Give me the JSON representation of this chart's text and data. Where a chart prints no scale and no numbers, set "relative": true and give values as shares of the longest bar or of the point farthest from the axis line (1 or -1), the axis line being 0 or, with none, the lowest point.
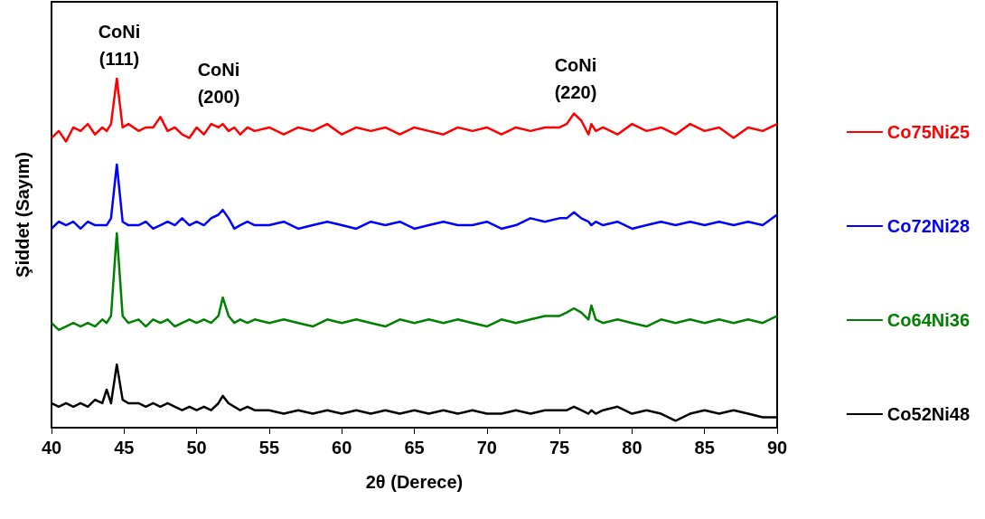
{
  "chart_data": {
    "type": "line",
    "relative": true,
    "xlabel": "2θ (Derece)",
    "ylabel": "Şiddet (Sayım)",
    "xlim": [
      40,
      90
    ],
    "xticks": [
      40,
      45,
      50,
      55,
      60,
      65,
      70,
      75,
      80,
      85,
      90
    ],
    "grid": false,
    "legend": "right",
    "line_style": "solid",
    "annotations": [
      "CoNi\n(111)",
      "CoNi\n(200)",
      "CoNi\n(220)"
    ],
    "x": [
      40,
      40.5,
      41,
      41.5,
      42,
      42.5,
      43,
      43.5,
      43.8,
      44.1,
      44.5,
      44.9,
      45.3,
      46,
      46.5,
      47,
      47.5,
      48,
      48.5,
      49,
      49.5,
      50,
      50.5,
      51,
      51.5,
      51.8,
      52.2,
      52.6,
      53,
      53.5,
      54,
      55,
      56,
      57,
      58,
      59,
      60,
      61,
      62,
      63,
      64,
      65,
      66,
      67,
      68,
      69,
      70,
      71,
      72,
      73,
      74,
      75,
      75.5,
      76,
      76.5,
      77,
      77.2,
      77.5,
      78,
      79,
      80,
      81,
      82,
      83,
      84,
      85,
      86,
      87,
      88,
      89,
      90
    ],
    "series": [
      {
        "name": "Co75Ni25",
        "color": "#ff0000",
        "values": [
          0.83,
          0.85,
          0.82,
          0.86,
          0.85,
          0.87,
          0.84,
          0.86,
          0.85,
          0.87,
          1.0,
          0.86,
          0.87,
          0.85,
          0.86,
          0.86,
          0.89,
          0.85,
          0.86,
          0.84,
          0.83,
          0.86,
          0.84,
          0.87,
          0.86,
          0.87,
          0.85,
          0.86,
          0.84,
          0.86,
          0.85,
          0.86,
          0.84,
          0.86,
          0.85,
          0.87,
          0.84,
          0.86,
          0.85,
          0.86,
          0.84,
          0.86,
          0.85,
          0.84,
          0.86,
          0.85,
          0.86,
          0.84,
          0.86,
          0.85,
          0.86,
          0.86,
          0.87,
          0.9,
          0.88,
          0.84,
          0.87,
          0.85,
          0.86,
          0.84,
          0.87,
          0.85,
          0.86,
          0.84,
          0.87,
          0.85,
          0.86,
          0.83,
          0.86,
          0.85,
          0.87
        ]
      },
      {
        "name": "Co72Ni28",
        "color": "#0000ff",
        "values": [
          0.57,
          0.59,
          0.58,
          0.59,
          0.57,
          0.59,
          0.58,
          0.58,
          0.58,
          0.6,
          0.754,
          0.59,
          0.58,
          0.58,
          0.59,
          0.57,
          0.58,
          0.59,
          0.58,
          0.6,
          0.58,
          0.59,
          0.58,
          0.6,
          0.61,
          0.624,
          0.6,
          0.57,
          0.58,
          0.59,
          0.58,
          0.58,
          0.59,
          0.57,
          0.58,
          0.59,
          0.58,
          0.57,
          0.59,
          0.58,
          0.59,
          0.57,
          0.58,
          0.59,
          0.58,
          0.58,
          0.59,
          0.57,
          0.58,
          0.6,
          0.59,
          0.6,
          0.6,
          0.617,
          0.6,
          0.59,
          0.58,
          0.59,
          0.58,
          0.59,
          0.57,
          0.58,
          0.59,
          0.58,
          0.59,
          0.58,
          0.59,
          0.58,
          0.59,
          0.58,
          0.61
        ]
      },
      {
        "name": "Co64Ni36",
        "color": "#008000",
        "values": [
          0.3,
          0.28,
          0.29,
          0.3,
          0.29,
          0.3,
          0.29,
          0.31,
          0.3,
          0.32,
          0.557,
          0.32,
          0.3,
          0.31,
          0.29,
          0.31,
          0.3,
          0.31,
          0.29,
          0.3,
          0.31,
          0.3,
          0.31,
          0.3,
          0.32,
          0.373,
          0.32,
          0.3,
          0.31,
          0.3,
          0.31,
          0.3,
          0.31,
          0.3,
          0.29,
          0.31,
          0.3,
          0.31,
          0.3,
          0.29,
          0.31,
          0.3,
          0.31,
          0.3,
          0.31,
          0.3,
          0.29,
          0.31,
          0.3,
          0.31,
          0.32,
          0.32,
          0.33,
          0.342,
          0.33,
          0.31,
          0.35,
          0.31,
          0.3,
          0.31,
          0.3,
          0.29,
          0.31,
          0.3,
          0.31,
          0.3,
          0.31,
          0.3,
          0.31,
          0.3,
          0.32
        ]
      },
      {
        "name": "Co52Ni48",
        "color": "#000000",
        "values": [
          0.07,
          0.06,
          0.07,
          0.06,
          0.07,
          0.06,
          0.08,
          0.07,
          0.109,
          0.07,
          0.181,
          0.08,
          0.07,
          0.07,
          0.06,
          0.07,
          0.06,
          0.07,
          0.06,
          0.05,
          0.06,
          0.05,
          0.06,
          0.05,
          0.07,
          0.091,
          0.07,
          0.06,
          0.05,
          0.06,
          0.05,
          0.05,
          0.04,
          0.05,
          0.04,
          0.05,
          0.04,
          0.05,
          0.04,
          0.05,
          0.04,
          0.05,
          0.04,
          0.05,
          0.04,
          0.05,
          0.04,
          0.04,
          0.05,
          0.04,
          0.05,
          0.05,
          0.05,
          0.06,
          0.05,
          0.04,
          0.05,
          0.04,
          0.05,
          0.06,
          0.04,
          0.05,
          0.04,
          0.02,
          0.04,
          0.05,
          0.04,
          0.05,
          0.04,
          0.03,
          0.03
        ]
      }
    ]
  }
}
